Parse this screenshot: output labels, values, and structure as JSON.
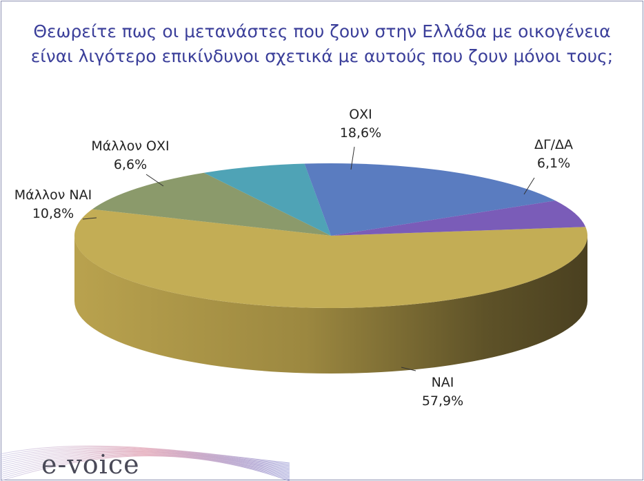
{
  "title_line1": "Θεωρείτε πως οι μετανάστες που ζουν στην Ελλάδα με οικογένεια",
  "title_line2": "είναι λιγότερο επικίνδυνοι σχετικά με αυτούς που ζουν μόνοι τους;",
  "logo_text": "e-voice",
  "chart_data": {
    "type": "pie",
    "style": "3d",
    "slices": [
      {
        "label": "ΝΑΙ",
        "value_label": "57,9%",
        "value": 57.9,
        "color": "#c3ad55"
      },
      {
        "label": "Μάλλον ΝΑΙ",
        "value_label": "10,8%",
        "value": 10.8,
        "color": "#8b9a6b"
      },
      {
        "label": "Μάλλον ΟΧΙ",
        "value_label": "6,6%",
        "value": 6.6,
        "color": "#4fa3b6"
      },
      {
        "label": "ΟΧΙ",
        "value_label": "18,6%",
        "value": 18.6,
        "color": "#5a7cc0"
      },
      {
        "label": "ΔΓ/ΔΑ",
        "value_label": "6,1%",
        "value": 6.1,
        "color": "#7a5cb8"
      }
    ]
  }
}
